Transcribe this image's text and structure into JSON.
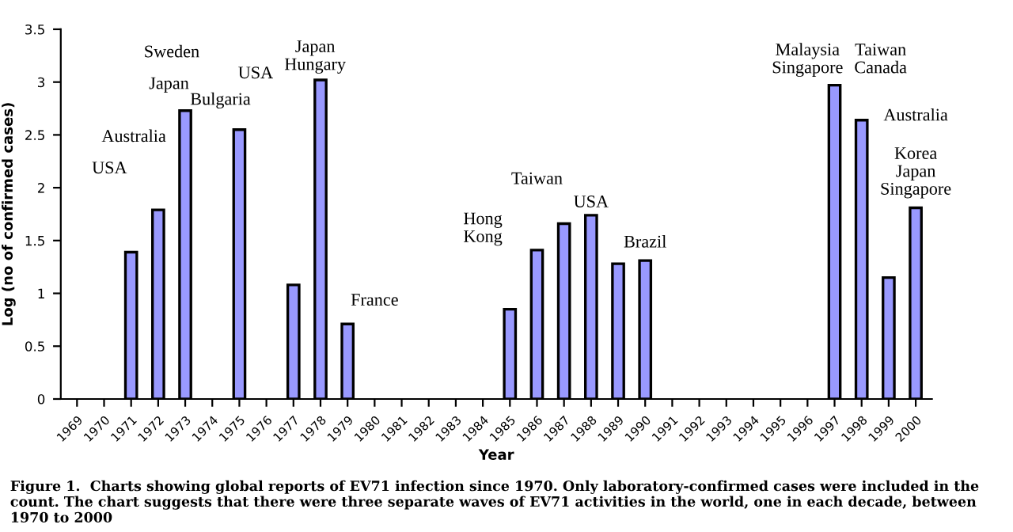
{
  "chart_data": {
    "type": "bar",
    "xlabel": "Year",
    "ylabel": "Log (no of confirmed cases)",
    "categories": [
      "1969",
      "1970",
      "1971",
      "1972",
      "1973",
      "1974",
      "1975",
      "1976",
      "1977",
      "1978",
      "1979",
      "1980",
      "1981",
      "1982",
      "1983",
      "1984",
      "1985",
      "1986",
      "1987",
      "1988",
      "1989",
      "1990",
      "1991",
      "1992",
      "1993",
      "1994",
      "1995",
      "1996",
      "1997",
      "1998",
      "1999",
      "2000"
    ],
    "values": [
      null,
      null,
      1.39,
      1.79,
      2.73,
      null,
      2.55,
      null,
      1.08,
      3.02,
      0.71,
      null,
      null,
      null,
      null,
      null,
      0.85,
      1.41,
      1.66,
      1.74,
      1.28,
      1.31,
      null,
      null,
      null,
      null,
      null,
      null,
      2.97,
      2.64,
      1.15,
      1.81
    ],
    "color": "#9999ff",
    "ylim": [
      0,
      3.5
    ],
    "yticks": [
      0,
      0.5,
      1,
      1.5,
      2,
      2.5,
      3,
      3.5
    ],
    "grid": false,
    "annotations": [
      "USA",
      "Australia",
      "Japan",
      "Sweden",
      "Bulgaria",
      "USA",
      "Japan\nHungary",
      "France",
      "Hong\nKong",
      "Taiwan",
      "USA",
      "Brazil",
      "Malaysia\nSingapore",
      "Taiwan\nCanada",
      "Australia",
      "Korea\nJapan\nSingapore",
      "Figure 1.  Charts showing global reports of EV71 infection since 1970. Only laboratory-confirmed cases were included in the count. The chart suggests that there were three separate waves of EV71 activities in the world, one in each decade, between 1970 to 2000"
    ]
  }
}
